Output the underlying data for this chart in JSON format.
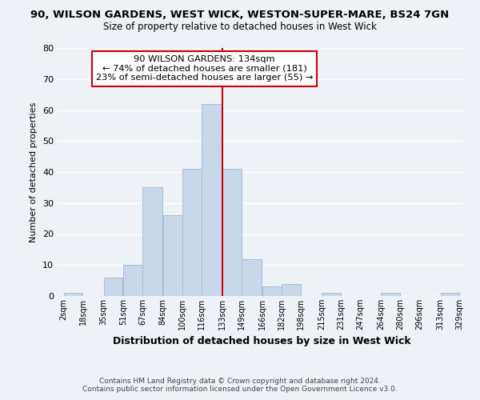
{
  "title": "90, WILSON GARDENS, WEST WICK, WESTON-SUPER-MARE, BS24 7GN",
  "subtitle": "Size of property relative to detached houses in West Wick",
  "xlabel": "Distribution of detached houses by size in West Wick",
  "ylabel": "Number of detached properties",
  "bar_color": "#c8d8ea",
  "bar_edge_color": "#a8bece",
  "bin_edges": [
    2,
    18,
    35,
    51,
    67,
    84,
    100,
    116,
    133,
    149,
    166,
    182,
    198,
    215,
    231,
    247,
    264,
    280,
    296,
    313,
    329
  ],
  "bin_labels": [
    "2sqm",
    "18sqm",
    "35sqm",
    "51sqm",
    "67sqm",
    "84sqm",
    "100sqm",
    "116sqm",
    "133sqm",
    "149sqm",
    "166sqm",
    "182sqm",
    "198sqm",
    "215sqm",
    "231sqm",
    "247sqm",
    "264sqm",
    "280sqm",
    "296sqm",
    "313sqm",
    "329sqm"
  ],
  "counts": [
    1,
    0,
    6,
    10,
    35,
    26,
    41,
    62,
    41,
    12,
    3,
    4,
    0,
    1,
    0,
    0,
    1,
    0,
    0,
    1
  ],
  "vline_x": 133,
  "annotation_title": "90 WILSON GARDENS: 134sqm",
  "annotation_line1": "← 74% of detached houses are smaller (181)",
  "annotation_line2": "23% of semi-detached houses are larger (55) →",
  "ylim": [
    0,
    80
  ],
  "yticks": [
    0,
    10,
    20,
    30,
    40,
    50,
    60,
    70,
    80
  ],
  "footer1": "Contains HM Land Registry data © Crown copyright and database right 2024.",
  "footer2": "Contains public sector information licensed under the Open Government Licence v3.0.",
  "vline_color": "#cc0000",
  "annotation_box_edge": "#cc0000",
  "background_color": "#eef2f7",
  "grid_color": "#ffffff"
}
